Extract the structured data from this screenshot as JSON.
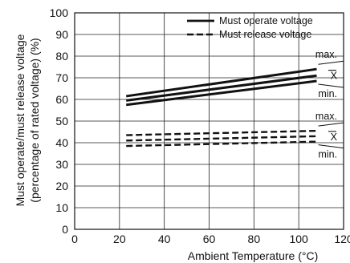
{
  "chart_data": {
    "type": "line",
    "xlabel": "Ambient Temperature (°C)",
    "ylabel_line1": "Must operate/must release voltage",
    "ylabel_line2": "(percentage of rated voltage) (%)",
    "xlim": [
      0,
      120
    ],
    "ylim": [
      0,
      100
    ],
    "xticks": [
      0,
      20,
      40,
      60,
      80,
      100,
      120
    ],
    "yticks": [
      0,
      10,
      20,
      30,
      40,
      50,
      60,
      70,
      80,
      90,
      100
    ],
    "grid": true,
    "legend_position": "top-right",
    "legend": [
      {
        "label": "Must operate voltage",
        "style": "solid"
      },
      {
        "label": "Must release voltage",
        "style": "dashed"
      }
    ],
    "series": [
      {
        "group": "operate",
        "stat": "max.",
        "style": "solid",
        "x": [
          23,
          108
        ],
        "y": [
          61.5,
          74
        ]
      },
      {
        "group": "operate",
        "stat": "X̄",
        "style": "solid",
        "x": [
          23,
          108
        ],
        "y": [
          59.5,
          71
        ]
      },
      {
        "group": "operate",
        "stat": "min.",
        "style": "solid",
        "x": [
          23,
          108
        ],
        "y": [
          57.5,
          68.5
        ]
      },
      {
        "group": "release",
        "stat": "max.",
        "style": "dashed",
        "x": [
          23,
          108
        ],
        "y": [
          43.5,
          45.5
        ]
      },
      {
        "group": "release",
        "stat": "X̄",
        "style": "dashed",
        "x": [
          23,
          108
        ],
        "y": [
          41,
          43
        ]
      },
      {
        "group": "release",
        "stat": "min.",
        "style": "dashed",
        "x": [
          23,
          108
        ],
        "y": [
          38.5,
          40.5
        ]
      }
    ],
    "annotations": [
      {
        "group": "operate",
        "labels": [
          "max.",
          "X",
          "min."
        ]
      },
      {
        "group": "release",
        "labels": [
          "max.",
          "X",
          "min."
        ]
      }
    ]
  }
}
